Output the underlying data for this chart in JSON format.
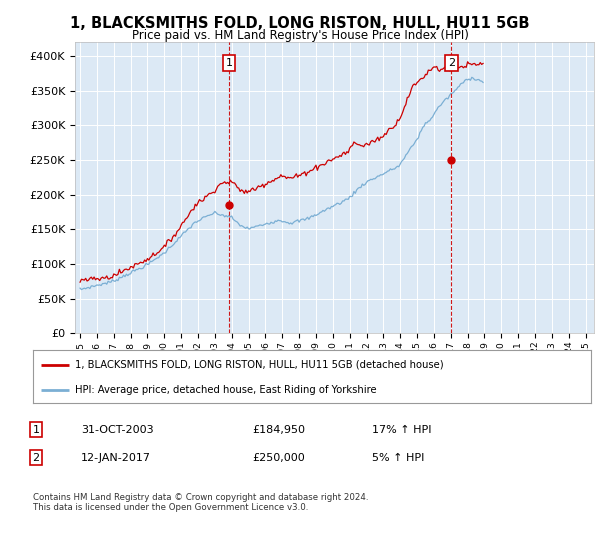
{
  "title": "1, BLACKSMITHS FOLD, LONG RISTON, HULL, HU11 5GB",
  "subtitle": "Price paid vs. HM Land Registry's House Price Index (HPI)",
  "red_color": "#cc0000",
  "blue_color": "#7bafd4",
  "plot_bg_color": "#dce9f5",
  "marker1_x": 2003.83,
  "marker1_y": 184950,
  "marker2_x": 2017.04,
  "marker2_y": 250000,
  "legend_line1": "1, BLACKSMITHS FOLD, LONG RISTON, HULL, HU11 5GB (detached house)",
  "legend_line2": "HPI: Average price, detached house, East Riding of Yorkshire",
  "footer": "Contains HM Land Registry data © Crown copyright and database right 2024.\nThis data is licensed under the Open Government Licence v3.0.",
  "ylim": [
    0,
    420000
  ],
  "yticks": [
    0,
    50000,
    100000,
    150000,
    200000,
    250000,
    300000,
    350000,
    400000
  ],
  "xlim_min": 1994.7,
  "xlim_max": 2025.5,
  "hpi_monthly": [
    63000,
    63500,
    64000,
    64500,
    65000,
    65500,
    66000,
    66500,
    67000,
    67500,
    68000,
    68500,
    69000,
    69500,
    70000,
    70500,
    71000,
    71500,
    72000,
    72500,
    73000,
    73500,
    74000,
    74500,
    75500,
    76500,
    77500,
    78500,
    79500,
    80500,
    81500,
    82500,
    83500,
    84500,
    85500,
    86000,
    87000,
    88000,
    89000,
    90000,
    91000,
    92000,
    93000,
    94000,
    95000,
    96000,
    97000,
    98000,
    99000,
    100000,
    101500,
    103000,
    104500,
    106000,
    107500,
    109000,
    110500,
    112000,
    113000,
    114000,
    116000,
    118000,
    120000,
    122000,
    124000,
    126000,
    128000,
    130000,
    132000,
    134000,
    136000,
    138000,
    140000,
    142000,
    144000,
    146000,
    148000,
    150000,
    152000,
    154000,
    156000,
    158000,
    160000,
    161000,
    162000,
    163000,
    164000,
    165000,
    166000,
    167000,
    168000,
    169000,
    170000,
    171000,
    172000,
    173000,
    173000,
    172500,
    172000,
    171500,
    171000,
    170500,
    170000,
    169500,
    169000,
    168500,
    168000,
    167500,
    167000,
    165000,
    163000,
    161000,
    159000,
    157000,
    156000,
    155000,
    154000,
    153000,
    152000,
    151000,
    151000,
    151500,
    152000,
    152500,
    153000,
    153500,
    154000,
    154500,
    155000,
    155500,
    156000,
    157000,
    158000,
    158500,
    159000,
    159500,
    160000,
    160500,
    161000,
    161500,
    162000,
    162500,
    163000,
    163500,
    162000,
    161500,
    161000,
    160500,
    160000,
    159500,
    159000,
    159500,
    160000,
    160500,
    161000,
    161500,
    162000,
    162500,
    163000,
    163500,
    164000,
    164500,
    165000,
    166000,
    167000,
    168000,
    169000,
    170000,
    171000,
    172000,
    173000,
    174000,
    175000,
    176000,
    177000,
    178000,
    179000,
    180000,
    181000,
    182000,
    183000,
    184000,
    185000,
    186000,
    187000,
    188000,
    189000,
    190000,
    191000,
    192000,
    193000,
    194000,
    196000,
    198000,
    200000,
    202000,
    204000,
    206000,
    208000,
    210000,
    212000,
    214000,
    215000,
    216000,
    218000,
    219000,
    220000,
    221000,
    222000,
    223000,
    224000,
    225000,
    226000,
    227000,
    228000,
    229000,
    230000,
    231000,
    232000,
    233000,
    234000,
    235000,
    236000,
    237000,
    238000,
    239000,
    240000,
    241000,
    244000,
    247000,
    250000,
    253000,
    256000,
    259000,
    262000,
    265000,
    268000,
    271000,
    274000,
    277000,
    280000,
    284000,
    288000,
    292000,
    296000,
    300000,
    302000,
    304000,
    306000,
    308000,
    310000,
    312000,
    316000,
    319000,
    322000,
    325000,
    328000,
    330000,
    332000,
    334000,
    336000,
    338000,
    340000,
    342000,
    344000,
    346000,
    348000,
    350000,
    352000,
    354000,
    356000,
    358000,
    360000,
    362000,
    364000,
    365000,
    366000,
    367000,
    367500,
    368000,
    368500,
    368000,
    367000,
    366000,
    365000,
    364000,
    363000,
    363000
  ],
  "red_monthly": [
    76000,
    76200,
    76400,
    76600,
    76800,
    77000,
    77200,
    77400,
    77600,
    77800,
    78000,
    78200,
    78400,
    78600,
    78800,
    79000,
    79200,
    79500,
    79800,
    80100,
    80500,
    81000,
    81500,
    82000,
    83000,
    84000,
    85000,
    86000,
    87000,
    88000,
    89000,
    90000,
    91000,
    92000,
    93000,
    94000,
    95000,
    96000,
    97000,
    98000,
    99000,
    100000,
    101000,
    102000,
    103000,
    104000,
    105000,
    106000,
    107000,
    108000,
    109500,
    111000,
    112500,
    114000,
    115500,
    117000,
    118500,
    120000,
    121000,
    122000,
    124000,
    126500,
    129000,
    131500,
    134000,
    136500,
    139000,
    141500,
    144000,
    146500,
    149000,
    152000,
    155000,
    158000,
    161000,
    164000,
    167000,
    170000,
    173000,
    176000,
    179000,
    182000,
    185000,
    186500,
    188000,
    189500,
    191000,
    192500,
    194000,
    195500,
    197000,
    198500,
    200000,
    201500,
    203000,
    205000,
    208000,
    210000,
    212000,
    214000,
    215000,
    216000,
    216500,
    217000,
    217500,
    218000,
    218500,
    219000,
    218000,
    216000,
    214000,
    212000,
    210000,
    208000,
    207000,
    206000,
    205000,
    204500,
    204000,
    203500,
    204000,
    205000,
    206000,
    207000,
    208000,
    209000,
    210000,
    211000,
    212000,
    213000,
    214000,
    215000,
    216000,
    217000,
    218000,
    219000,
    220000,
    221000,
    222000,
    223000,
    224000,
    225000,
    226000,
    227000,
    226000,
    225500,
    225000,
    224500,
    224000,
    223500,
    224000,
    224500,
    225000,
    225500,
    226000,
    226500,
    227000,
    228000,
    229000,
    230000,
    231000,
    232000,
    233000,
    234000,
    235000,
    236000,
    237000,
    238000,
    239000,
    240000,
    241000,
    242000,
    243000,
    244000,
    245000,
    246000,
    247000,
    248000,
    249000,
    250000,
    251000,
    252000,
    253000,
    254000,
    255000,
    256000,
    257000,
    258000,
    259000,
    260000,
    261000,
    262000,
    265000,
    268000,
    271000,
    274000,
    275000,
    274000,
    273000,
    272000,
    271000,
    270000,
    270000,
    271000,
    272000,
    273000,
    274000,
    275000,
    276000,
    277000,
    278000,
    279000,
    280000,
    281000,
    282000,
    283000,
    285000,
    287000,
    289000,
    291000,
    293000,
    295000,
    297000,
    299000,
    301000,
    303000,
    305000,
    307000,
    312000,
    317000,
    322000,
    327000,
    332000,
    337000,
    342000,
    347000,
    352000,
    355000,
    357000,
    359000,
    361000,
    363000,
    365000,
    367000,
    369000,
    371000,
    373000,
    375000,
    377000,
    379000,
    381000,
    383000,
    385000,
    384000,
    383000,
    382000,
    381000,
    380000,
    381000,
    382000,
    383000,
    382000,
    381000,
    380000,
    381000,
    382000,
    383000,
    384000,
    385000,
    386000,
    385000,
    384000,
    383000,
    384000,
    385000,
    386000,
    387000,
    388000,
    387000,
    386000,
    387000,
    388000,
    387000,
    386000,
    387000,
    388000,
    389000,
    390000
  ]
}
